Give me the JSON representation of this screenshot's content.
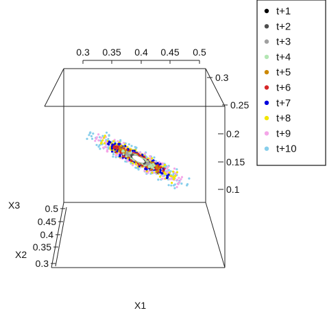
{
  "chart_data": {
    "type": "scatter3d",
    "axes": {
      "x": {
        "label": "X1",
        "ticks": [
          "0.3",
          "0.35",
          "0.4",
          "0.45",
          "0.5"
        ],
        "range": [
          0.28,
          0.52
        ]
      },
      "y": {
        "label": "X2",
        "ticks": [],
        "range": [
          0.08,
          0.34
        ]
      },
      "z": {
        "label": "X3",
        "ticks": [
          "0.5",
          "0.45",
          "0.4",
          "0.35",
          "0.3"
        ],
        "range": [
          0.28,
          0.52
        ]
      },
      "right_ticks": [
        "0.3",
        "0.25",
        "0.2",
        "0.15",
        "0.1"
      ]
    },
    "series": [
      {
        "name": "t+1",
        "color": "#000000",
        "spread": 0.06
      },
      {
        "name": "t+2",
        "color": "#4d4d4d",
        "spread": 0.1
      },
      {
        "name": "t+3",
        "color": "#a0a0a0",
        "spread": 0.16
      },
      {
        "name": "t+4",
        "color": "#b3e6b3",
        "spread": 0.22
      },
      {
        "name": "t+5",
        "color": "#cc8800",
        "spread": 0.28
      },
      {
        "name": "t+6",
        "color": "#d62728",
        "spread": 0.34
      },
      {
        "name": "t+7",
        "color": "#0000dd",
        "spread": 0.42
      },
      {
        "name": "t+8",
        "color": "#f2e600",
        "spread": 0.5
      },
      {
        "name": "t+9",
        "color": "#f4a6e8",
        "spread": 0.58
      },
      {
        "name": "t+10",
        "color": "#87ceeb",
        "spread": 0.68
      }
    ],
    "legend_position": "top-right",
    "grid": false
  }
}
